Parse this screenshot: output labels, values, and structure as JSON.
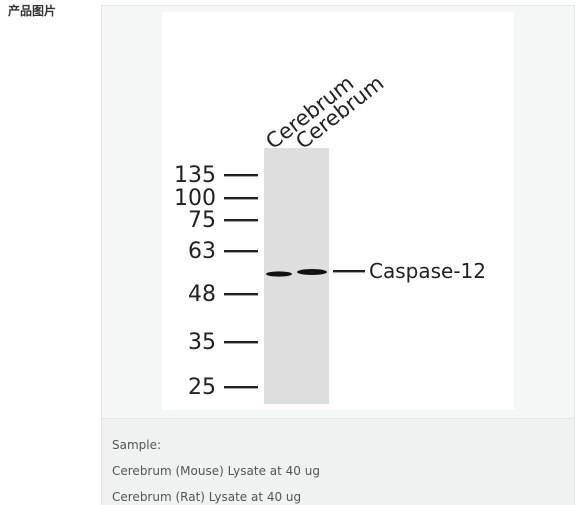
{
  "section_label": "产品图片",
  "blot": {
    "lanes": [
      "Cerebrum",
      "Cerebrum"
    ],
    "markers": [
      "135",
      "100",
      "75",
      "63",
      "48",
      "35",
      "25"
    ],
    "band_label": "Caspase-12",
    "colors": {
      "membrane": "#dedede",
      "band": "#111111",
      "text": "#222222"
    }
  },
  "caption": {
    "heading": "Sample:",
    "lines": [
      "Cerebrum (Mouse) Lysate at 40 ug",
      "Cerebrum (Rat) Lysate at 40 ug"
    ]
  }
}
